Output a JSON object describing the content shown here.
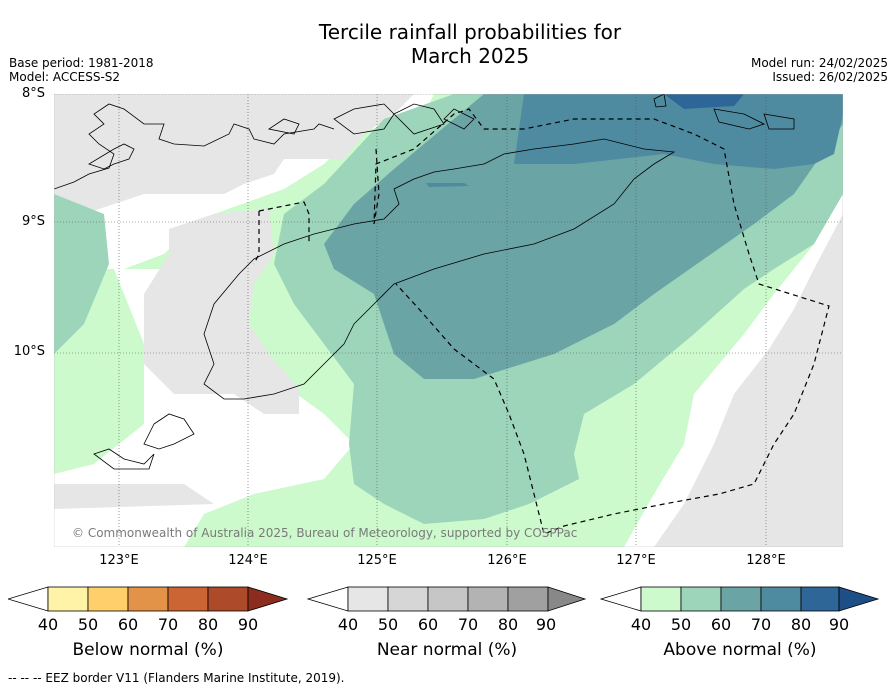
{
  "title_line1": "Tercile rainfall probabilities for",
  "title_line2": "March 2025",
  "base_period": "Base period: 1981-2018",
  "model": "Model: ACCESS-S2",
  "model_run": "Model run: 24/02/2025",
  "issued": "Issued: 26/02/2025",
  "lat_labels": [
    "8°S",
    "9°S",
    "10°S"
  ],
  "lon_labels": [
    "123°E",
    "124°E",
    "125°E",
    "126°E",
    "127°E",
    "128°E"
  ],
  "copyright": "© Commonwealth of Australia 2025, Bureau of Meteorology, supported by COSPPac",
  "footer": "--  --  -- EEZ border V11 (Flanders Marine Institute, 2019).",
  "colorbars": [
    {
      "label": "Below normal (%)",
      "ticks": [
        "40",
        "50",
        "60",
        "70",
        "80",
        "90"
      ],
      "colors": [
        "#fff3a8",
        "#fecf6a",
        "#e39347",
        "#cc6534",
        "#ad4a29",
        "#8b2c1f"
      ]
    },
    {
      "label": "Near normal (%)",
      "ticks": [
        "40",
        "50",
        "60",
        "70",
        "80",
        "90"
      ],
      "colors": [
        "#e6e6e6",
        "#d6d6d6",
        "#c6c6c6",
        "#b3b3b3",
        "#a0a0a0",
        "#888888"
      ]
    },
    {
      "label": "Above normal (%)",
      "ticks": [
        "40",
        "50",
        "60",
        "70",
        "80",
        "90"
      ],
      "colors": [
        "#ccfacc",
        "#9cd5b9",
        "#6ba4a5",
        "#4e8ba0",
        "#2e6697",
        "#1d4f86"
      ]
    }
  ]
}
